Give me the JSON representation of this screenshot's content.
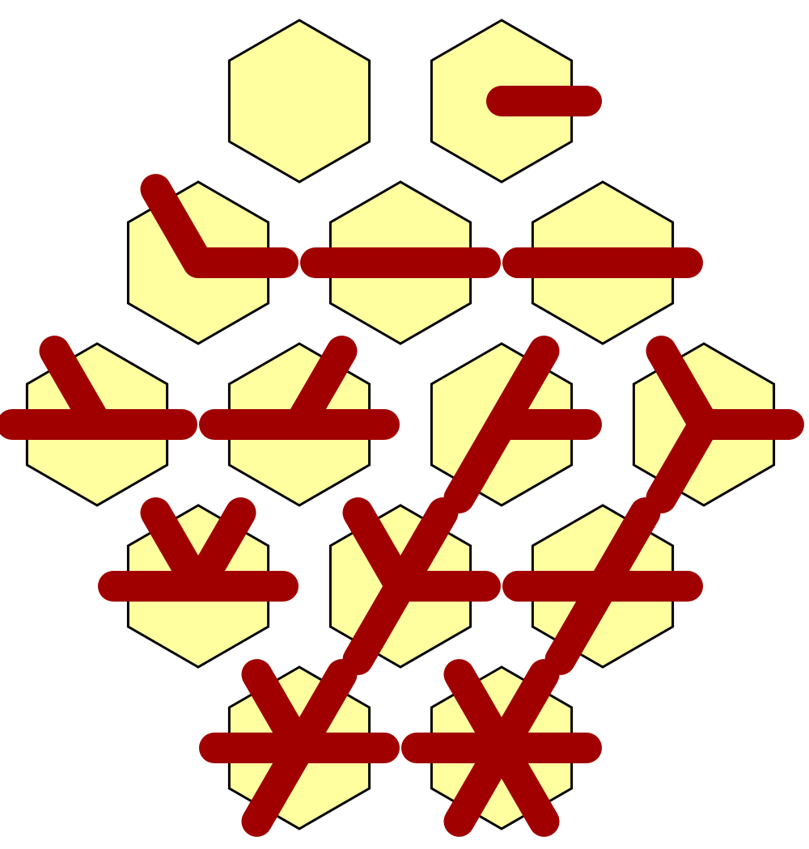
{
  "colors": {
    "background": "#ffffff",
    "hex_fill": "#ffff9f",
    "hex_stroke": "#000000",
    "spoke": "#a00000"
  },
  "tiles": [
    {
      "id": "tile-1",
      "spokes": []
    },
    {
      "id": "tile-2",
      "spokes": [
        0
      ]
    },
    {
      "id": "tile-3",
      "spokes": [
        0,
        4
      ]
    },
    {
      "id": "tile-4",
      "spokes": [
        0,
        3
      ]
    },
    {
      "id": "tile-5",
      "spokes": [
        0,
        3
      ]
    },
    {
      "id": "tile-6",
      "spokes": [
        0,
        3,
        4
      ]
    },
    {
      "id": "tile-7",
      "spokes": [
        0,
        3,
        5
      ]
    },
    {
      "id": "tile-8",
      "spokes": [
        0,
        2,
        5
      ]
    },
    {
      "id": "tile-9",
      "spokes": [
        0,
        2,
        4
      ]
    },
    {
      "id": "tile-10",
      "spokes": [
        0,
        3,
        4,
        5
      ]
    },
    {
      "id": "tile-11",
      "spokes": [
        0,
        2,
        4,
        5
      ]
    },
    {
      "id": "tile-12",
      "spokes": [
        0,
        2,
        3,
        5
      ]
    },
    {
      "id": "tile-13",
      "spokes": [
        0,
        2,
        3,
        4,
        5
      ]
    },
    {
      "id": "tile-14",
      "spokes": [
        0,
        1,
        2,
        3,
        4,
        5
      ]
    }
  ]
}
